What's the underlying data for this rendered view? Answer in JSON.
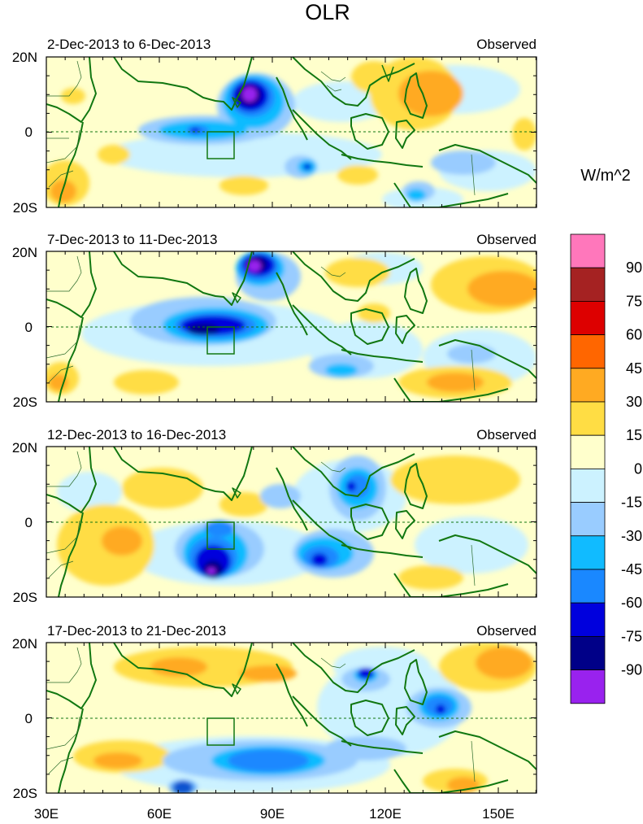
{
  "title": "OLR",
  "units": "W/m^2",
  "panel_tag": "Observed",
  "panels": [
    {
      "period": "2-Dec-2013 to 6-Dec-2013"
    },
    {
      "period": "7-Dec-2013 to 11-Dec-2013"
    },
    {
      "period": "12-Dec-2013 to 16-Dec-2013"
    },
    {
      "period": "17-Dec-2013 to 21-Dec-2013"
    }
  ],
  "lat_labels": [
    "20N",
    "0",
    "20S"
  ],
  "lon_labels": [
    "30E",
    "60E",
    "90E",
    "120E",
    "150E"
  ],
  "colorbar": {
    "labels": [
      "90",
      "75",
      "60",
      "45",
      "30",
      "15",
      "0",
      "-15",
      "-30",
      "-45",
      "-60",
      "-75",
      "-90"
    ],
    "colors_top_to_bottom": [
      "#ff77bb",
      "#a52222",
      "#dd0000",
      "#ff6600",
      "#ffaa22",
      "#ffdd44",
      "#ffffcc",
      "#ccf2ff",
      "#99ccff",
      "#11bbff",
      "#1a88ff",
      "#0000dd",
      "#000088",
      "#9922ee"
    ]
  },
  "colors": {
    "land_outline": "#117711",
    "country_lines": "#2a6a2a",
    "equator_line": "#117711",
    "index_box": "#117711"
  }
}
